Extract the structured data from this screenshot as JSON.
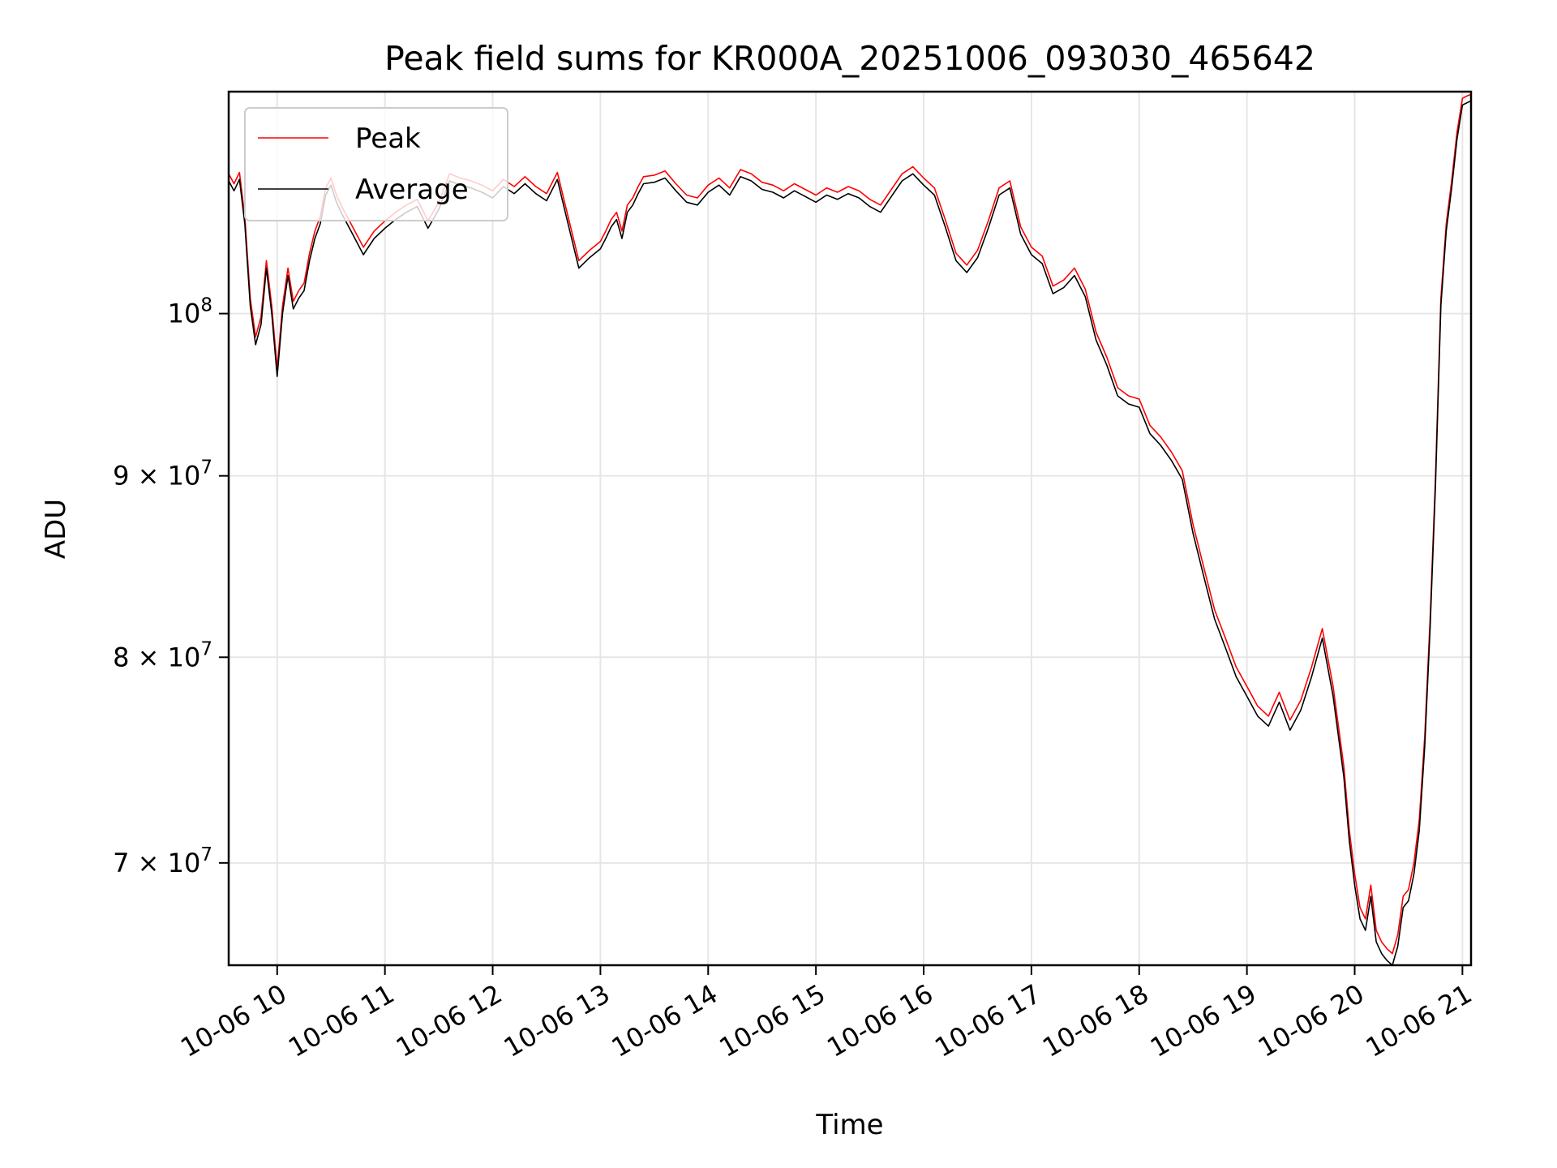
{
  "chart_data": {
    "type": "line",
    "title": "Peak field sums for KR000A_20251006_093030_465642",
    "xlabel": "Time",
    "ylabel": "ADU",
    "yscale": "log",
    "xlim": [
      9.55,
      21.08
    ],
    "ylim": [
      65500000,
      115500000
    ],
    "grid": true,
    "legend_position": "upper left",
    "x_ticks": [
      {
        "value": 10,
        "label": "10-06 10"
      },
      {
        "value": 11,
        "label": "10-06 11"
      },
      {
        "value": 12,
        "label": "10-06 12"
      },
      {
        "value": 13,
        "label": "10-06 13"
      },
      {
        "value": 14,
        "label": "10-06 14"
      },
      {
        "value": 15,
        "label": "10-06 15"
      },
      {
        "value": 16,
        "label": "10-06 16"
      },
      {
        "value": 17,
        "label": "10-06 17"
      },
      {
        "value": 18,
        "label": "10-06 18"
      },
      {
        "value": 19,
        "label": "10-06 19"
      },
      {
        "value": 20,
        "label": "10-06 20"
      },
      {
        "value": 21,
        "label": "10-06 21"
      }
    ],
    "y_ticks": [
      {
        "value": 70000000,
        "base": "7 × 10",
        "exp": "7"
      },
      {
        "value": 80000000,
        "base": "8 × 10",
        "exp": "7"
      },
      {
        "value": 90000000,
        "base": "9 × 10",
        "exp": "7"
      },
      {
        "value": 100000000,
        "base": "10",
        "exp": "8"
      }
    ],
    "x": [
      9.55,
      9.6,
      9.65,
      9.7,
      9.75,
      9.8,
      9.85,
      9.9,
      9.95,
      10.0,
      10.05,
      10.1,
      10.15,
      10.2,
      10.25,
      10.3,
      10.35,
      10.4,
      10.45,
      10.5,
      10.55,
      10.6,
      10.7,
      10.8,
      10.9,
      11.0,
      11.1,
      11.2,
      11.3,
      11.4,
      11.5,
      11.6,
      11.7,
      11.8,
      11.9,
      12.0,
      12.1,
      12.2,
      12.3,
      12.4,
      12.5,
      12.6,
      12.7,
      12.8,
      12.9,
      13.0,
      13.05,
      13.1,
      13.15,
      13.2,
      13.25,
      13.3,
      13.35,
      13.4,
      13.5,
      13.6,
      13.7,
      13.8,
      13.9,
      14.0,
      14.1,
      14.2,
      14.3,
      14.4,
      14.5,
      14.6,
      14.7,
      14.8,
      14.9,
      15.0,
      15.1,
      15.2,
      15.3,
      15.4,
      15.5,
      15.6,
      15.7,
      15.8,
      15.9,
      16.0,
      16.1,
      16.2,
      16.3,
      16.4,
      16.5,
      16.6,
      16.7,
      16.8,
      16.9,
      17.0,
      17.1,
      17.2,
      17.3,
      17.4,
      17.5,
      17.6,
      17.7,
      17.8,
      17.9,
      18.0,
      18.1,
      18.2,
      18.3,
      18.4,
      18.5,
      18.6,
      18.7,
      18.8,
      18.9,
      19.0,
      19.1,
      19.2,
      19.3,
      19.4,
      19.5,
      19.6,
      19.7,
      19.8,
      19.9,
      19.95,
      20.0,
      20.05,
      20.1,
      20.15,
      20.2,
      20.25,
      20.3,
      20.35,
      20.4,
      20.45,
      20.5,
      20.55,
      20.6,
      20.65,
      20.7,
      20.75,
      20.8,
      20.85,
      20.9,
      20.95,
      21.0,
      21.05,
      21.08
    ],
    "series": [
      {
        "name": "Peak",
        "color": "#ff0000",
        "values": [
          109500000,
          108800000,
          109600000,
          106500000,
          101000000,
          98500000,
          99800000,
          103500000,
          100500000,
          96500000,
          100500000,
          103000000,
          100800000,
          101500000,
          102000000,
          104000000,
          105500000,
          106500000,
          108500000,
          109200000,
          108000000,
          107200000,
          105800000,
          104400000,
          105500000,
          106200000,
          106800000,
          107300000,
          107700000,
          106200000,
          107500000,
          109500000,
          109200000,
          109000000,
          108700000,
          108300000,
          109100000,
          108600000,
          109300000,
          108600000,
          108100000,
          109600000,
          106500000,
          103500000,
          104200000,
          104800000,
          105500000,
          106300000,
          106800000,
          105500000,
          107300000,
          107800000,
          108600000,
          109300000,
          109400000,
          109700000,
          108800000,
          108000000,
          107800000,
          108700000,
          109200000,
          108500000,
          109800000,
          109500000,
          108900000,
          108700000,
          108300000,
          108800000,
          108400000,
          108000000,
          108500000,
          108200000,
          108600000,
          108300000,
          107700000,
          107300000,
          108400000,
          109500000,
          110000000,
          109200000,
          108500000,
          106300000,
          104000000,
          103200000,
          104200000,
          106200000,
          108500000,
          109000000,
          105800000,
          104400000,
          103800000,
          101800000,
          102200000,
          103000000,
          101600000,
          98800000,
          97200000,
          95300000,
          94800000,
          94600000,
          93000000,
          92300000,
          91400000,
          90300000,
          87200000,
          84800000,
          82500000,
          81000000,
          79500000,
          78500000,
          77500000,
          77000000,
          78200000,
          76800000,
          77800000,
          79500000,
          81500000,
          78500000,
          74500000,
          71500000,
          69500000,
          68000000,
          67500000,
          69000000,
          67000000,
          66500000,
          66200000,
          66000000,
          66800000,
          68500000,
          68800000,
          70000000,
          72000000,
          76000000,
          82000000,
          90000000,
          101000000,
          106000000,
          109000000,
          112500000,
          115000000,
          115200000,
          115300000
        ]
      },
      {
        "name": "Average",
        "color": "#000000",
        "values": [
          109000000,
          108300000,
          109100000,
          106000000,
          100500000,
          98000000,
          99300000,
          103000000,
          100000000,
          96000000,
          100000000,
          102500000,
          100300000,
          101000000,
          101500000,
          103500000,
          105000000,
          106000000,
          108000000,
          108700000,
          107500000,
          106700000,
          105300000,
          103900000,
          105000000,
          105700000,
          106300000,
          106800000,
          107200000,
          105700000,
          107000000,
          109000000,
          108700000,
          108500000,
          108200000,
          107800000,
          108600000,
          108100000,
          108800000,
          108100000,
          107600000,
          109100000,
          106000000,
          103000000,
          103700000,
          104300000,
          105000000,
          105800000,
          106300000,
          105000000,
          106800000,
          107300000,
          108100000,
          108800000,
          108900000,
          109200000,
          108300000,
          107500000,
          107300000,
          108200000,
          108700000,
          108000000,
          109300000,
          109000000,
          108400000,
          108200000,
          107800000,
          108300000,
          107900000,
          107500000,
          108000000,
          107700000,
          108100000,
          107800000,
          107200000,
          106800000,
          107900000,
          109000000,
          109500000,
          108700000,
          108000000,
          105800000,
          103500000,
          102700000,
          103700000,
          105700000,
          108000000,
          108500000,
          105300000,
          103900000,
          103300000,
          101300000,
          101700000,
          102500000,
          101100000,
          98300000,
          96700000,
          94800000,
          94300000,
          94100000,
          92500000,
          91800000,
          90900000,
          89800000,
          86700000,
          84300000,
          82000000,
          80500000,
          79000000,
          78000000,
          77000000,
          76500000,
          77700000,
          76300000,
          77300000,
          79000000,
          81000000,
          78000000,
          74000000,
          71000000,
          69000000,
          67500000,
          67000000,
          68500000,
          66500000,
          66000000,
          65700000,
          65500000,
          66300000,
          68000000,
          68300000,
          69500000,
          71500000,
          75500000,
          81500000,
          89500000,
          100500000,
          105500000,
          108500000,
          112000000,
          114500000,
          114700000,
          114800000
        ]
      }
    ]
  }
}
